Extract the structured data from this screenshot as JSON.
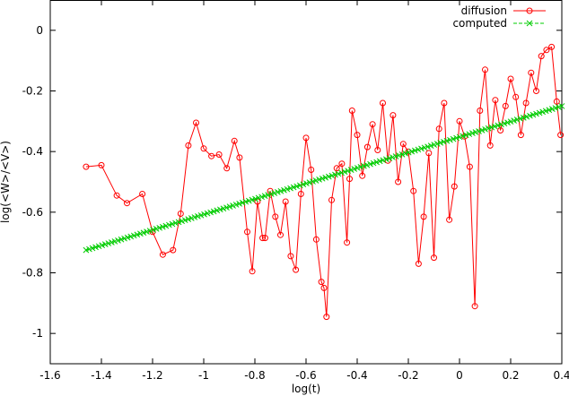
{
  "chart_data": {
    "type": "line",
    "xlabel": "log(t)",
    "ylabel": "log(<W>/<V>)",
    "xlim": [
      -1.6,
      0.4
    ],
    "ylim": [
      -1.1,
      0.1
    ],
    "xticks": [
      "-1.6",
      "-1.4",
      "-1.2",
      "-1",
      "-0.8",
      "-0.6",
      "-0.4",
      "-0.2",
      "0",
      "0.2",
      "0.4"
    ],
    "yticks": [
      "0",
      "-0.2",
      "-0.4",
      "-0.6",
      "-0.8",
      "-1"
    ],
    "legend_position": "top-right",
    "series": [
      {
        "name": "diffusion",
        "color": "#ff0000",
        "marker": "circle",
        "points": [
          [
            -1.46,
            -0.45
          ],
          [
            -1.4,
            -0.445
          ],
          [
            -1.34,
            -0.545
          ],
          [
            -1.3,
            -0.57
          ],
          [
            -1.24,
            -0.54
          ],
          [
            -1.2,
            -0.665
          ],
          [
            -1.16,
            -0.74
          ],
          [
            -1.12,
            -0.725
          ],
          [
            -1.09,
            -0.605
          ],
          [
            -1.06,
            -0.38
          ],
          [
            -1.03,
            -0.305
          ],
          [
            -1.0,
            -0.39
          ],
          [
            -0.97,
            -0.415
          ],
          [
            -0.94,
            -0.41
          ],
          [
            -0.91,
            -0.455
          ],
          [
            -0.88,
            -0.365
          ],
          [
            -0.86,
            -0.42
          ],
          [
            -0.83,
            -0.665
          ],
          [
            -0.81,
            -0.795
          ],
          [
            -0.79,
            -0.565
          ],
          [
            -0.77,
            -0.685
          ],
          [
            -0.76,
            -0.685
          ],
          [
            -0.74,
            -0.53
          ],
          [
            -0.72,
            -0.615
          ],
          [
            -0.7,
            -0.675
          ],
          [
            -0.68,
            -0.565
          ],
          [
            -0.66,
            -0.745
          ],
          [
            -0.64,
            -0.79
          ],
          [
            -0.62,
            -0.54
          ],
          [
            -0.6,
            -0.355
          ],
          [
            -0.58,
            -0.46
          ],
          [
            -0.56,
            -0.69
          ],
          [
            -0.54,
            -0.83
          ],
          [
            -0.53,
            -0.85
          ],
          [
            -0.52,
            -0.945
          ],
          [
            -0.5,
            -0.56
          ],
          [
            -0.48,
            -0.455
          ],
          [
            -0.46,
            -0.44
          ],
          [
            -0.44,
            -0.7
          ],
          [
            -0.43,
            -0.49
          ],
          [
            -0.42,
            -0.265
          ],
          [
            -0.4,
            -0.345
          ],
          [
            -0.38,
            -0.48
          ],
          [
            -0.36,
            -0.385
          ],
          [
            -0.34,
            -0.31
          ],
          [
            -0.32,
            -0.395
          ],
          [
            -0.3,
            -0.24
          ],
          [
            -0.28,
            -0.43
          ],
          [
            -0.26,
            -0.28
          ],
          [
            -0.24,
            -0.5
          ],
          [
            -0.22,
            -0.375
          ],
          [
            -0.2,
            -0.4
          ],
          [
            -0.18,
            -0.53
          ],
          [
            -0.16,
            -0.77
          ],
          [
            -0.14,
            -0.615
          ],
          [
            -0.12,
            -0.405
          ],
          [
            -0.1,
            -0.75
          ],
          [
            -0.08,
            -0.325
          ],
          [
            -0.06,
            -0.24
          ],
          [
            -0.04,
            -0.625
          ],
          [
            -0.02,
            -0.515
          ],
          [
            0.0,
            -0.3
          ],
          [
            0.02,
            -0.35
          ],
          [
            0.04,
            -0.45
          ],
          [
            0.06,
            -0.91
          ],
          [
            0.08,
            -0.265
          ],
          [
            0.1,
            -0.13
          ],
          [
            0.12,
            -0.38
          ],
          [
            0.14,
            -0.23
          ],
          [
            0.16,
            -0.33
          ],
          [
            0.18,
            -0.25
          ],
          [
            0.2,
            -0.16
          ],
          [
            0.22,
            -0.22
          ],
          [
            0.24,
            -0.345
          ],
          [
            0.26,
            -0.24
          ],
          [
            0.28,
            -0.14
          ],
          [
            0.3,
            -0.2
          ],
          [
            0.32,
            -0.085
          ],
          [
            0.34,
            -0.065
          ],
          [
            0.36,
            -0.055
          ],
          [
            0.38,
            -0.235
          ],
          [
            0.395,
            -0.345
          ]
        ]
      },
      {
        "name": "computed",
        "color": "#00cc00",
        "marker": "x",
        "x_start": -1.46,
        "x_end": 0.4,
        "y_start": -0.725,
        "y_end": -0.25,
        "point_count": 150
      }
    ]
  }
}
